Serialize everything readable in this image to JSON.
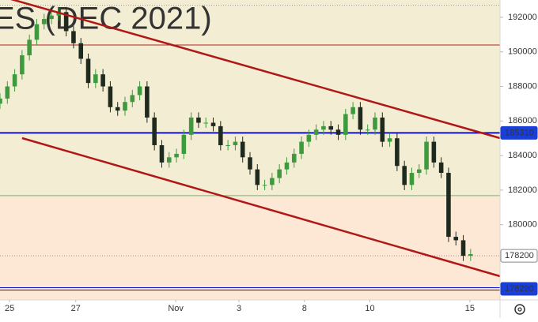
{
  "chart_data": {
    "type": "candlestick",
    "watermark": "ES (DEC 2021)",
    "x": [
      0,
      1,
      2,
      3,
      4,
      5,
      6,
      7,
      8,
      9,
      10,
      11,
      12,
      13,
      14,
      15,
      16,
      17,
      18,
      19,
      20,
      21,
      22,
      23,
      24,
      25,
      26,
      27,
      28,
      29,
      30,
      31,
      32,
      33,
      34,
      35,
      36,
      37,
      38,
      39,
      40,
      41,
      42,
      43,
      44,
      45,
      46,
      47,
      48,
      49,
      50,
      51,
      52,
      53,
      54,
      55,
      56,
      57,
      58,
      59,
      60,
      61,
      62,
      63,
      64
    ],
    "open": [
      187000,
      187300,
      188000,
      188700,
      189800,
      190700,
      191600,
      191900,
      192100,
      192300,
      191200,
      190500,
      189600,
      188200,
      188700,
      188000,
      186800,
      186600,
      187100,
      187500,
      188000,
      186200,
      184600,
      183600,
      183900,
      184100,
      185200,
      186200,
      185900,
      185900,
      185700,
      184600,
      184600,
      184800,
      183900,
      183200,
      182300,
      182300,
      182700,
      183200,
      183600,
      184100,
      184800,
      185200,
      185500,
      185700,
      185500,
      185200,
      186400,
      186800,
      185500,
      185500,
      186200,
      184800,
      185000,
      183400,
      182300,
      183000,
      183200,
      184800,
      183600,
      183000,
      179300,
      179100,
      178200
    ],
    "high": [
      187600,
      188300,
      189000,
      190100,
      191000,
      191900,
      192200,
      192400,
      192600,
      192600,
      191500,
      190800,
      189900,
      189000,
      189000,
      188300,
      187100,
      187400,
      187800,
      188300,
      188300,
      186500,
      184900,
      184200,
      184400,
      185500,
      186500,
      186500,
      186200,
      186200,
      186000,
      184900,
      185100,
      185100,
      184200,
      183500,
      182600,
      183000,
      183500,
      183900,
      184400,
      185100,
      185500,
      185800,
      186000,
      186000,
      185800,
      186700,
      187100,
      187100,
      185800,
      186500,
      186500,
      185300,
      185300,
      183700,
      183300,
      183500,
      185100,
      185100,
      183900,
      183300,
      179600,
      179400,
      178600
    ],
    "low": [
      186700,
      187000,
      187700,
      188400,
      189500,
      190400,
      191300,
      191600,
      191800,
      190900,
      190200,
      189300,
      187900,
      187900,
      187700,
      186500,
      186300,
      186300,
      186800,
      187200,
      185900,
      184300,
      183300,
      183300,
      183600,
      183800,
      184900,
      185600,
      185600,
      185400,
      184300,
      184300,
      184300,
      183600,
      182900,
      182000,
      182000,
      182000,
      182400,
      182900,
      183300,
      183800,
      184500,
      184900,
      185200,
      185200,
      184900,
      184900,
      186100,
      185200,
      185200,
      185200,
      184500,
      184500,
      183100,
      182000,
      182000,
      182700,
      182900,
      183300,
      182700,
      179000,
      178800,
      177900,
      177900
    ],
    "close": [
      187300,
      188000,
      188700,
      189800,
      190700,
      191600,
      191900,
      192100,
      192300,
      191200,
      190500,
      189600,
      188200,
      188700,
      188000,
      186800,
      186600,
      187100,
      187500,
      188000,
      186200,
      184600,
      183600,
      183900,
      184100,
      185200,
      186200,
      185900,
      185900,
      185700,
      184600,
      184600,
      184800,
      183900,
      183200,
      182300,
      182300,
      182700,
      183200,
      183600,
      184100,
      184800,
      185200,
      185500,
      185700,
      185500,
      185200,
      186400,
      186800,
      185500,
      185500,
      186200,
      184800,
      185000,
      183400,
      182300,
      183000,
      183200,
      184800,
      183600,
      183000,
      179300,
      179100,
      178200,
      178300
    ],
    "up_color": "#3d9a3d",
    "down_color": "#1f2a1f",
    "xlim": [
      0,
      68
    ],
    "ylim": [
      175650,
      193000
    ],
    "xticks": [
      {
        "value": 1.3,
        "label": "25"
      },
      {
        "value": 10.3,
        "label": "27"
      },
      {
        "value": 23.9,
        "label": "Nov"
      },
      {
        "value": 32.5,
        "label": "3"
      },
      {
        "value": 41.4,
        "label": "8"
      },
      {
        "value": 50.3,
        "label": "10"
      },
      {
        "value": 63.9,
        "label": "15"
      }
    ],
    "yticks": [
      192000,
      190000,
      188000,
      186000,
      184000,
      182000,
      180000,
      178000
    ],
    "grid": false,
    "hlines": [
      {
        "value": 192700,
        "color": "#9a9a9a",
        "style": "dotted"
      },
      {
        "value": 190400,
        "color": "#b22222",
        "style": "solid"
      },
      {
        "value": 185310,
        "color": "#1010d0",
        "style": "thick"
      },
      {
        "value": 181680,
        "color": "#66bb77",
        "style": "solid"
      },
      {
        "value": 178200,
        "color": "#c08080",
        "style": "dotted"
      },
      {
        "value": 176290,
        "color": "#1010d0",
        "style": "double"
      }
    ],
    "price_labels": [
      {
        "value": 185310,
        "label": "185310",
        "bg": "#1a3fd8",
        "fg": "#ffffff"
      },
      {
        "value": 178200,
        "label": "178200",
        "bg": "#ffffff",
        "fg": "#222222"
      },
      {
        "value": 176290,
        "label": "176290",
        "bg": "#1a3fd8",
        "fg": "#ffffff"
      }
    ],
    "trend_lines": [
      {
        "color": "#b01818",
        "x": [
          0,
          68
        ],
        "y": [
          193230,
          185010
        ]
      },
      {
        "color": "#b01818",
        "x": [
          3,
          68
        ],
        "y": [
          185010,
          177020
        ]
      }
    ]
  }
}
